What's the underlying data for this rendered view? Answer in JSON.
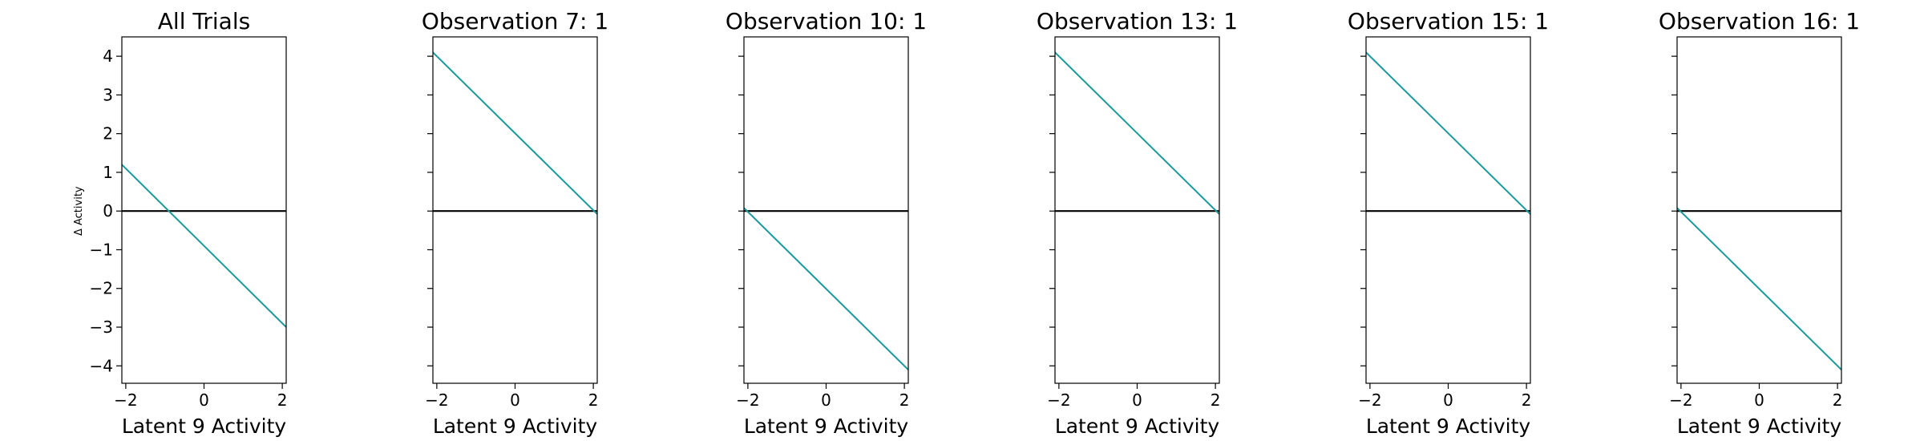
{
  "chart_data": [
    {
      "type": "line",
      "title": "All Trials",
      "xlabel": "Latent 9 Activity",
      "ylabel": "Δ Activity",
      "xlim": [
        -2.1,
        2.1
      ],
      "ylim": [
        -4.45,
        4.5
      ],
      "xticks": [
        -2,
        0,
        2
      ],
      "yticks": [
        -4,
        -3,
        -2,
        -1,
        0,
        1,
        2,
        3,
        4
      ],
      "grid": false,
      "zero_line": 0,
      "series": [
        {
          "x": [
            -2.1,
            2.1
          ],
          "y": [
            1.2,
            -3.0
          ],
          "color": "#1a9a9a"
        }
      ]
    },
    {
      "type": "line",
      "title": "Observation 7: 1",
      "xlabel": "Latent 9 Activity",
      "ylabel": "",
      "xlim": [
        -2.1,
        2.1
      ],
      "ylim": [
        -4.45,
        4.5
      ],
      "xticks": [
        -2,
        0,
        2
      ],
      "yticks": [
        -4,
        -3,
        -2,
        -1,
        0,
        1,
        2,
        3,
        4
      ],
      "grid": false,
      "zero_line": 0,
      "series": [
        {
          "x": [
            -2.1,
            2.1
          ],
          "y": [
            4.1,
            -0.08
          ],
          "color": "#1a9a9a"
        }
      ]
    },
    {
      "type": "line",
      "title": "Observation 10: 1",
      "xlabel": "Latent 9 Activity",
      "ylabel": "",
      "xlim": [
        -2.1,
        2.1
      ],
      "ylim": [
        -4.45,
        4.5
      ],
      "xticks": [
        -2,
        0,
        2
      ],
      "yticks": [
        -4,
        -3,
        -2,
        -1,
        0,
        1,
        2,
        3,
        4
      ],
      "grid": false,
      "zero_line": 0,
      "series": [
        {
          "x": [
            -2.1,
            2.1
          ],
          "y": [
            0.08,
            -4.1
          ],
          "color": "#1a9a9a"
        }
      ]
    },
    {
      "type": "line",
      "title": "Observation 13: 1",
      "xlabel": "Latent 9 Activity",
      "ylabel": "",
      "xlim": [
        -2.1,
        2.1
      ],
      "ylim": [
        -4.45,
        4.5
      ],
      "xticks": [
        -2,
        0,
        2
      ],
      "yticks": [
        -4,
        -3,
        -2,
        -1,
        0,
        1,
        2,
        3,
        4
      ],
      "grid": false,
      "zero_line": 0,
      "series": [
        {
          "x": [
            -2.1,
            2.1
          ],
          "y": [
            4.1,
            -0.08
          ],
          "color": "#1a9a9a"
        }
      ]
    },
    {
      "type": "line",
      "title": "Observation 15: 1",
      "xlabel": "Latent 9 Activity",
      "ylabel": "",
      "xlim": [
        -2.1,
        2.1
      ],
      "ylim": [
        -4.45,
        4.5
      ],
      "xticks": [
        -2,
        0,
        2
      ],
      "yticks": [
        -4,
        -3,
        -2,
        -1,
        0,
        1,
        2,
        3,
        4
      ],
      "grid": false,
      "zero_line": 0,
      "series": [
        {
          "x": [
            -2.1,
            2.1
          ],
          "y": [
            4.1,
            -0.08
          ],
          "color": "#1a9a9a"
        }
      ]
    },
    {
      "type": "line",
      "title": "Observation 16: 1",
      "xlabel": "Latent 9 Activity",
      "ylabel": "",
      "xlim": [
        -2.1,
        2.1
      ],
      "ylim": [
        -4.45,
        4.5
      ],
      "xticks": [
        -2,
        0,
        2
      ],
      "yticks": [
        -4,
        -3,
        -2,
        -1,
        0,
        1,
        2,
        3,
        4
      ],
      "grid": false,
      "zero_line": 0,
      "series": [
        {
          "x": [
            -2.1,
            2.1
          ],
          "y": [
            0.08,
            -4.1
          ],
          "color": "#1a9a9a"
        }
      ]
    }
  ]
}
